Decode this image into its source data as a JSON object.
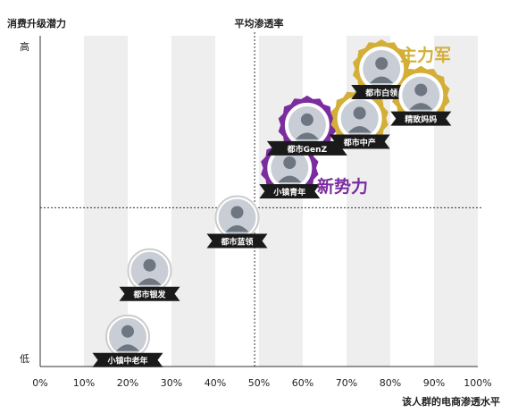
{
  "chart_data": {
    "type": "scatter",
    "title": "",
    "ylabel": "消费升级潜力",
    "xlabel": "该人群的电商渗透水平",
    "center_line_label": "平均渗透率",
    "y_high_label": "高",
    "y_low_label": "低",
    "xlim": [
      0,
      100
    ],
    "ylim": [
      0,
      100
    ],
    "x_ticks": [
      "0%",
      "10%",
      "20%",
      "30%",
      "40%",
      "50%",
      "60%",
      "70%",
      "80%",
      "90%",
      "100%"
    ],
    "avg_penetration_x": 49,
    "avg_potential_y": 48,
    "grid": "alternating vertical bands",
    "groups": [
      {
        "name": "主力军",
        "color": "#D4AF37"
      },
      {
        "name": "新势力",
        "color": "#7B2C9E"
      }
    ],
    "points": [
      {
        "label": "小镇中老年",
        "x": 20,
        "y": 9,
        "group": ""
      },
      {
        "label": "都市银发",
        "x": 25,
        "y": 29,
        "group": ""
      },
      {
        "label": "都市蓝领",
        "x": 45,
        "y": 45,
        "group": ""
      },
      {
        "label": "小镇青年",
        "x": 57,
        "y": 60,
        "group": "新势力"
      },
      {
        "label": "都市GenZ",
        "x": 61,
        "y": 73,
        "group": "新势力"
      },
      {
        "label": "都市中产",
        "x": 73,
        "y": 75,
        "group": "主力军"
      },
      {
        "label": "都市白领",
        "x": 78,
        "y": 90,
        "group": "主力军"
      },
      {
        "label": "精致妈妈",
        "x": 87,
        "y": 82,
        "group": "主力军"
      }
    ]
  },
  "colors": {
    "gold": "#D4AF37",
    "purple": "#7B2C9E",
    "band": "#EEEEEE",
    "label_bg": "#1A1A1A"
  }
}
